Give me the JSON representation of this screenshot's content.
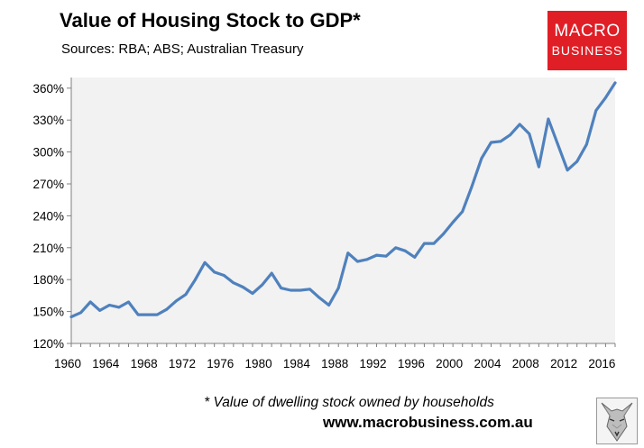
{
  "header": {
    "title": "Value of Housing Stock to GDP*",
    "subtitle": "Sources: RBA; ABS; Australian Treasury"
  },
  "logo": {
    "line1": "MACRO",
    "line2": "BUSINESS",
    "color": "#e01e26"
  },
  "footer": {
    "footnote": "* Value of dwelling stock owned by households",
    "website": "www.macrobusiness.com.au"
  },
  "chart_data": {
    "type": "line",
    "title": "Value of Housing Stock to GDP*",
    "xlabel": "",
    "ylabel": "",
    "xlim": [
      1960,
      2017
    ],
    "ylim": [
      120,
      370
    ],
    "x_ticks": [
      1960,
      1964,
      1968,
      1972,
      1976,
      1980,
      1984,
      1988,
      1992,
      1996,
      2000,
      2004,
      2008,
      2012,
      2016
    ],
    "y_ticks": [
      120,
      150,
      180,
      210,
      240,
      270,
      300,
      330,
      360
    ],
    "y_tick_labels": [
      "120%",
      "150%",
      "180%",
      "210%",
      "240%",
      "270%",
      "300%",
      "330%",
      "360%"
    ],
    "grid": false,
    "plot_background": "#f2f2f2",
    "series": [
      {
        "color": "#4f81bd",
        "x": [
          1960,
          1961,
          1962,
          1963,
          1964,
          1965,
          1966,
          1967,
          1968,
          1969,
          1970,
          1971,
          1972,
          1973,
          1974,
          1975,
          1976,
          1977,
          1978,
          1979,
          1980,
          1981,
          1982,
          1983,
          1984,
          1985,
          1986,
          1987,
          1988,
          1989,
          1990,
          1991,
          1992,
          1993,
          1994,
          1995,
          1996,
          1997,
          1998,
          1999,
          2000,
          2001,
          2002,
          2003,
          2004,
          2005,
          2006,
          2007,
          2008,
          2009,
          2010,
          2011,
          2012,
          2013,
          2014,
          2015,
          2016,
          2017
        ],
        "values": [
          145,
          149,
          159,
          151,
          156,
          154,
          159,
          147,
          147,
          147,
          152,
          160,
          166,
          180,
          196,
          187,
          184,
          177,
          173,
          167,
          175,
          186,
          172,
          170,
          170,
          171,
          163,
          156,
          172,
          205,
          197,
          199,
          203,
          202,
          210,
          207,
          201,
          214,
          214,
          223,
          234,
          244,
          268,
          294,
          309,
          310,
          316,
          326,
          317,
          286,
          331,
          307,
          283,
          291,
          307,
          339,
          351,
          365
        ]
      }
    ]
  }
}
